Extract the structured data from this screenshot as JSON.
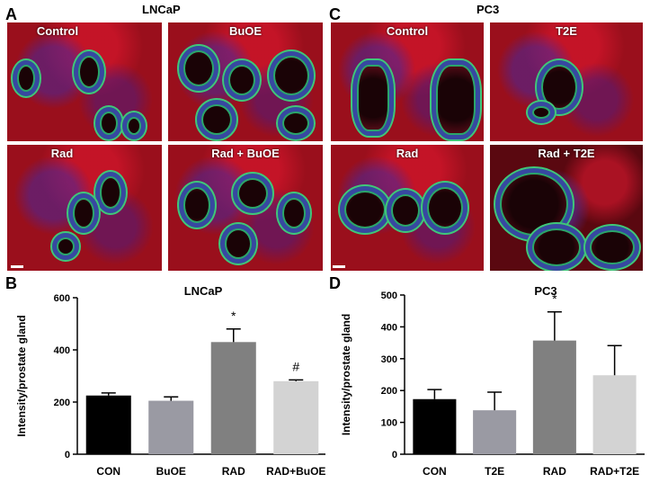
{
  "panel_letters": {
    "a": "A",
    "b": "B",
    "c": "C",
    "d": "D"
  },
  "group_titles": {
    "lncap": "LNCaP",
    "pc3": "PC3"
  },
  "micrographs": {
    "a": [
      {
        "label": "Control"
      },
      {
        "label": "BuOE"
      },
      {
        "label": "Rad"
      },
      {
        "label": "Rad + BuOE"
      }
    ],
    "c": [
      {
        "label": "Control"
      },
      {
        "label": "T2E"
      },
      {
        "label": "Rad"
      },
      {
        "label": "Rad + T2E"
      }
    ]
  },
  "chart_data": [
    {
      "type": "bar",
      "title": "LNCaP",
      "ylabel": "Intensity/prostate gland",
      "xlabel": "",
      "categories": [
        "CON",
        "BuOE",
        "RAD",
        "RAD+BuOE"
      ],
      "values": [
        225,
        205,
        430,
        280
      ],
      "errors": [
        10,
        15,
        50,
        5
      ],
      "annotations": [
        "",
        "",
        "*",
        "#"
      ],
      "colors": [
        "#000000",
        "#9a9aa3",
        "#808080",
        "#d3d3d3"
      ],
      "ylim": [
        0,
        600
      ],
      "yticks": [
        0,
        200,
        400,
        600
      ],
      "grid": false
    },
    {
      "type": "bar",
      "title": "PC3",
      "ylabel": "Intensity/prostate gland",
      "xlabel": "",
      "categories": [
        "CON",
        "T2E",
        "RAD",
        "RAD+T2E"
      ],
      "values": [
        173,
        138,
        357,
        248
      ],
      "errors": [
        30,
        57,
        90,
        93
      ],
      "annotations": [
        "",
        "",
        "*",
        ""
      ],
      "colors": [
        "#000000",
        "#9a9aa3",
        "#808080",
        "#d3d3d3"
      ],
      "ylim": [
        0,
        500
      ],
      "yticks": [
        0,
        100,
        200,
        300,
        400,
        500
      ],
      "grid": false
    }
  ]
}
